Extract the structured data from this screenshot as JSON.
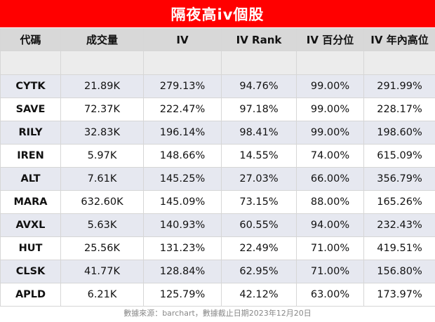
{
  "title": "隔夜高iv個股",
  "columns": [
    "代碼",
    "成交量",
    "IV",
    "IV Rank",
    "IV 百分位",
    "IV 年內高位"
  ],
  "rows": [
    {
      "symbol": "CYTK",
      "volume": "21.89K",
      "iv": "279.13%",
      "iv_rank": "94.76%",
      "iv_percentile": "99.00%",
      "iv_year_high": "291.99%"
    },
    {
      "symbol": "SAVE",
      "volume": "72.37K",
      "iv": "222.47%",
      "iv_rank": "97.18%",
      "iv_percentile": "99.00%",
      "iv_year_high": "228.17%"
    },
    {
      "symbol": "RILY",
      "volume": "32.83K",
      "iv": "196.14%",
      "iv_rank": "98.41%",
      "iv_percentile": "99.00%",
      "iv_year_high": "198.60%"
    },
    {
      "symbol": "IREN",
      "volume": "5.97K",
      "iv": "148.66%",
      "iv_rank": "14.55%",
      "iv_percentile": "74.00%",
      "iv_year_high": "615.09%"
    },
    {
      "symbol": "ALT",
      "volume": "7.61K",
      "iv": "145.25%",
      "iv_rank": "27.03%",
      "iv_percentile": "66.00%",
      "iv_year_high": "356.79%"
    },
    {
      "symbol": "MARA",
      "volume": "632.60K",
      "iv": "145.09%",
      "iv_rank": "73.15%",
      "iv_percentile": "88.00%",
      "iv_year_high": "165.26%"
    },
    {
      "symbol": "AVXL",
      "volume": "5.63K",
      "iv": "140.93%",
      "iv_rank": "60.55%",
      "iv_percentile": "94.00%",
      "iv_year_high": "232.43%"
    },
    {
      "symbol": "HUT",
      "volume": "25.56K",
      "iv": "131.23%",
      "iv_rank": "22.49%",
      "iv_percentile": "71.00%",
      "iv_year_high": "419.51%"
    },
    {
      "symbol": "CLSK",
      "volume": "41.77K",
      "iv": "128.84%",
      "iv_rank": "62.95%",
      "iv_percentile": "71.00%",
      "iv_year_high": "156.80%"
    },
    {
      "symbol": "APLD",
      "volume": "6.21K",
      "iv": "125.79%",
      "iv_rank": "42.12%",
      "iv_percentile": "63.00%",
      "iv_year_high": "173.97%"
    }
  ],
  "source_note": "數據來源：barchart，數據截止日期2023年12月20日",
  "colors": {
    "title_bg": "#ff0000",
    "title_text": "#ffffff",
    "header_bg": "#d8d8d8",
    "alt_row_bg": "#e6e8f0"
  }
}
